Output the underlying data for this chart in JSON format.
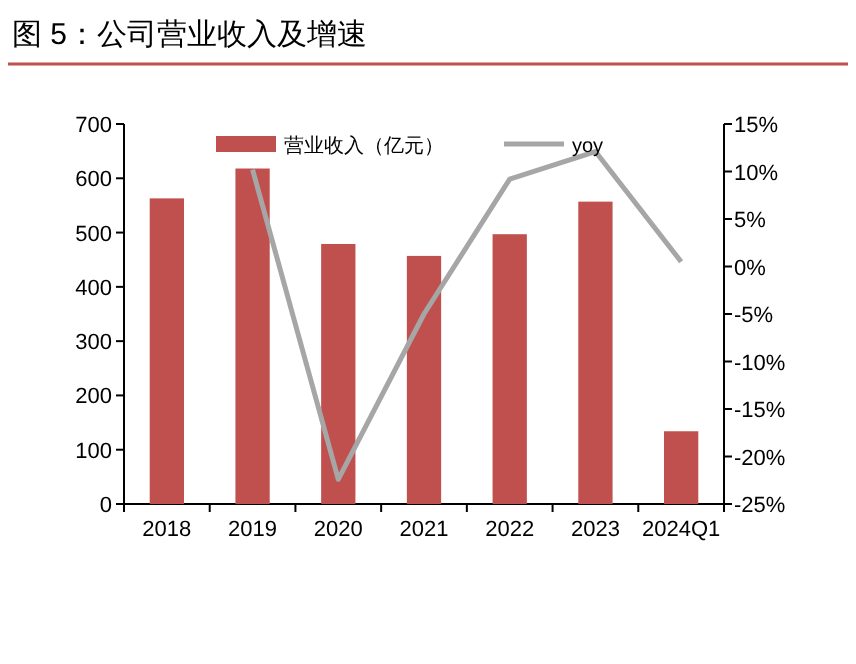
{
  "chart_data": {
    "type": "bar",
    "title": "图 5：公司营业收入及增速",
    "categories": [
      "2018",
      "2019",
      "2020",
      "2021",
      "2022",
      "2023",
      "2024Q1"
    ],
    "series": [
      {
        "name": "营业收入（亿元）",
        "color": "#c0504d",
        "values": [
          563,
          618,
          479,
          457,
          497,
          557,
          134
        ]
      },
      {
        "name": "yoy",
        "type": "line",
        "axis": "y2",
        "color": "#a6a6a6",
        "values": [
          null,
          10.2,
          -22.4,
          -5,
          9.2,
          12.1,
          0.5
        ]
      }
    ],
    "ylim": [
      0,
      700
    ],
    "yticks": [
      0,
      100,
      200,
      300,
      400,
      500,
      600,
      700
    ],
    "y2lim": [
      -25,
      15
    ],
    "y2ticks": [
      {
        "value": -25,
        "label": "-25%"
      },
      {
        "value": -20,
        "label": "-20%"
      },
      {
        "value": -15,
        "label": "-15%"
      },
      {
        "value": -10,
        "label": "-10%"
      },
      {
        "value": -5,
        "label": "-5%"
      },
      {
        "value": 0,
        "label": "0%"
      },
      {
        "value": 5,
        "label": "5%"
      },
      {
        "value": 10,
        "label": "10%"
      },
      {
        "value": 15,
        "label": "15%"
      }
    ],
    "legend": "top",
    "grid": false,
    "marker": "none"
  }
}
